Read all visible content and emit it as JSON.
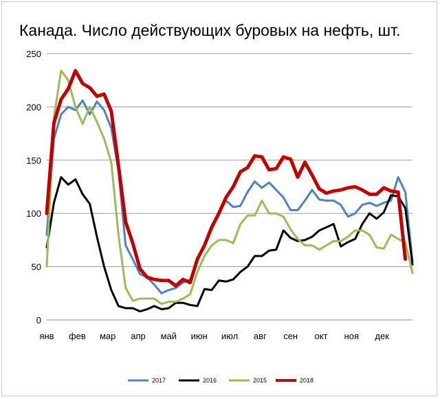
{
  "chart_data": {
    "type": "line",
    "title": "Канада. Число действующих буровых на нефть, шт.",
    "xlabel": "",
    "ylabel": "",
    "ylim": [
      0,
      250
    ],
    "yticks": [
      0,
      50,
      100,
      150,
      200,
      250
    ],
    "month_labels": [
      "янв",
      "фев",
      "мар",
      "апр",
      "май",
      "июн",
      "июл",
      "авг",
      "сен",
      "окт",
      "ноя",
      "дек"
    ],
    "x_unit": "week of year",
    "grid": true,
    "legend_position": "bottom",
    "series": [
      {
        "name": "2017",
        "color": "#4f81bd",
        "width": 3,
        "x": [
          1,
          2,
          3,
          4,
          5,
          6,
          7,
          8,
          9,
          10,
          11,
          12,
          13,
          14,
          15,
          16,
          17,
          18,
          19,
          20,
          21,
          22,
          23,
          24,
          25,
          26,
          27,
          28,
          29,
          30,
          31,
          32,
          33,
          34,
          35,
          36,
          37,
          38,
          39,
          40,
          41,
          42,
          43,
          44,
          45,
          46,
          47,
          48,
          49,
          50,
          51,
          52
        ],
        "values": [
          80,
          170,
          193,
          200,
          197,
          206,
          193,
          205,
          197,
          180,
          140,
          70,
          57,
          43,
          40,
          33,
          25,
          28,
          30,
          35,
          38,
          55,
          70,
          85,
          100,
          112,
          106,
          107,
          120,
          130,
          124,
          129,
          122,
          115,
          103,
          103,
          112,
          122,
          113,
          112,
          112,
          108,
          97,
          100,
          108,
          110,
          107,
          110,
          112,
          134,
          120,
          55
        ]
      },
      {
        "name": "2016",
        "color": "#000000",
        "width": 3,
        "x": [
          1,
          2,
          3,
          4,
          5,
          6,
          7,
          8,
          9,
          10,
          11,
          12,
          13,
          14,
          15,
          16,
          17,
          18,
          19,
          20,
          21,
          22,
          23,
          24,
          25,
          26,
          27,
          28,
          29,
          30,
          31,
          32,
          33,
          34,
          35,
          36,
          37,
          38,
          39,
          40,
          41,
          42,
          43,
          44,
          45,
          46,
          47,
          48,
          49,
          50,
          51,
          52
        ],
        "values": [
          68,
          110,
          134,
          127,
          132,
          118,
          109,
          78,
          50,
          28,
          13,
          11,
          11,
          8,
          10,
          13,
          10,
          11,
          16,
          16,
          14,
          13,
          29,
          28,
          37,
          36,
          38,
          45,
          50,
          60,
          60,
          65,
          66,
          84,
          77,
          74,
          75,
          78,
          84,
          87,
          90,
          69,
          73,
          76,
          90,
          100,
          95,
          101,
          117,
          116,
          105,
          52
        ]
      },
      {
        "name": "2015",
        "color": "#9bbb59",
        "width": 3,
        "x": [
          1,
          2,
          3,
          4,
          5,
          6,
          7,
          8,
          9,
          10,
          11,
          12,
          13,
          14,
          15,
          16,
          17,
          18,
          19,
          20,
          21,
          22,
          23,
          24,
          25,
          26,
          27,
          28,
          29,
          30,
          31,
          32,
          33,
          34,
          35,
          36,
          37,
          38,
          39,
          40,
          41,
          42,
          43,
          44,
          45,
          46,
          47,
          48,
          49,
          50,
          51,
          52
        ],
        "values": [
          50,
          190,
          234,
          225,
          200,
          184,
          200,
          186,
          170,
          148,
          80,
          30,
          18,
          20,
          20,
          20,
          15,
          17,
          17,
          20,
          24,
          45,
          60,
          70,
          75,
          75,
          72,
          90,
          98,
          98,
          112,
          100,
          100,
          97,
          85,
          76,
          70,
          70,
          66,
          70,
          74,
          74,
          78,
          84,
          84,
          80,
          68,
          67,
          80,
          76,
          73,
          44
        ]
      },
      {
        "name": "2018",
        "color": "#c00000",
        "width": 5,
        "x": [
          1,
          2,
          3,
          4,
          5,
          6,
          7,
          8,
          9,
          10,
          11,
          12,
          13,
          14,
          15,
          16,
          17,
          18,
          19,
          20,
          21,
          22,
          23,
          24,
          25,
          26,
          27,
          28,
          29,
          30,
          31,
          32,
          33,
          34,
          35,
          36,
          37,
          38,
          39,
          40,
          41,
          42,
          43,
          44,
          45,
          46,
          47,
          48,
          49,
          50,
          51
        ],
        "values": [
          100,
          185,
          207,
          217,
          234,
          222,
          218,
          210,
          212,
          196,
          145,
          92,
          72,
          48,
          40,
          38,
          37,
          37,
          32,
          38,
          35,
          57,
          70,
          87,
          100,
          115,
          125,
          139,
          143,
          154,
          153,
          141,
          142,
          153,
          151,
          134,
          148,
          136,
          123,
          119,
          121,
          122,
          124,
          125,
          122,
          118,
          118,
          124,
          121,
          120,
          57
        ]
      }
    ]
  }
}
